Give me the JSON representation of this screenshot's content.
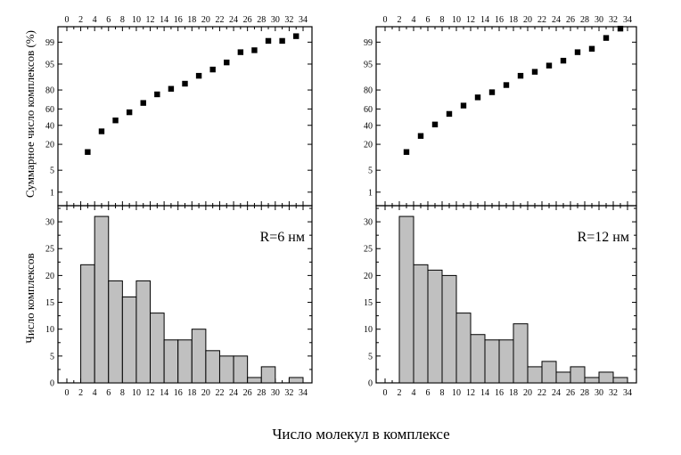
{
  "figure": {
    "x_axis_title": "Число молекул в комплексе",
    "y_axis_title_top": "Суммарное число комплексов (%)",
    "y_axis_title_bottom": "Число комплексов"
  },
  "colors": {
    "bar_fill": "#c0c0c0",
    "bar_stroke": "#000000",
    "marker": "#000000"
  },
  "chart_data": [
    {
      "id": "left-top",
      "type": "scatter",
      "title": "",
      "xlabel": "",
      "ylabel": "Суммарное число комплексов (%)",
      "xlim": [
        0,
        34
      ],
      "xticks": [
        0,
        2,
        4,
        6,
        8,
        10,
        12,
        14,
        16,
        18,
        20,
        22,
        24,
        26,
        28,
        30,
        32,
        34
      ],
      "y_scale": "probability",
      "yticks": [
        1,
        5,
        20,
        40,
        60,
        80,
        95,
        99
      ],
      "series": [
        {
          "x": [
            3,
            5,
            7,
            9,
            11,
            13,
            15,
            17,
            19,
            21,
            23,
            25,
            27,
            29,
            31,
            33
          ],
          "y": [
            14,
            33,
            46,
            56,
            67,
            76,
            81,
            85,
            90,
            93,
            95.5,
            97.8,
            98.1,
            99.1,
            99.1,
            99.4
          ]
        }
      ]
    },
    {
      "id": "left-bottom",
      "type": "bar",
      "title": "",
      "annotation": "R=6 нм",
      "xlabel": "Число молекул в комплексе",
      "ylabel": "Число комплексов",
      "xlim": [
        0,
        34
      ],
      "ylim": [
        0,
        33
      ],
      "xticks": [
        0,
        2,
        4,
        6,
        8,
        10,
        12,
        14,
        16,
        18,
        20,
        22,
        24,
        26,
        28,
        30,
        32,
        34
      ],
      "yticks": [
        0,
        5,
        10,
        15,
        20,
        25,
        30
      ],
      "categories": [
        3,
        5,
        7,
        9,
        11,
        13,
        15,
        17,
        19,
        21,
        23,
        25,
        27,
        29,
        31,
        33
      ],
      "values": [
        22,
        31,
        19,
        16,
        19,
        13,
        8,
        8,
        10,
        6,
        5,
        5,
        1,
        3,
        0,
        1
      ]
    },
    {
      "id": "right-top",
      "type": "scatter",
      "title": "",
      "xlabel": "",
      "ylabel": "",
      "xlim": [
        0,
        34
      ],
      "xticks": [
        0,
        2,
        4,
        6,
        8,
        10,
        12,
        14,
        16,
        18,
        20,
        22,
        24,
        26,
        28,
        30,
        32,
        34
      ],
      "y_scale": "probability",
      "yticks": [
        1,
        5,
        20,
        40,
        60,
        80,
        95,
        99
      ],
      "series": [
        {
          "x": [
            3,
            5,
            7,
            9,
            11,
            13,
            15,
            17,
            19,
            21,
            23,
            25,
            27,
            29,
            31,
            33
          ],
          "y": [
            14,
            28,
            41,
            54,
            64,
            73,
            78,
            84,
            90,
            92,
            94.5,
            96,
            97.8,
            98.3,
            99.3,
            99.7
          ]
        }
      ]
    },
    {
      "id": "right-bottom",
      "type": "bar",
      "title": "",
      "annotation": "R=12 нм",
      "xlabel": "Число молекул в комплексе",
      "ylabel": "",
      "xlim": [
        0,
        34
      ],
      "ylim": [
        0,
        33
      ],
      "xticks": [
        0,
        2,
        4,
        6,
        8,
        10,
        12,
        14,
        16,
        18,
        20,
        22,
        24,
        26,
        28,
        30,
        32,
        34
      ],
      "yticks": [
        0,
        5,
        10,
        15,
        20,
        25,
        30
      ],
      "categories": [
        3,
        5,
        7,
        9,
        11,
        13,
        15,
        17,
        19,
        21,
        23,
        25,
        27,
        29,
        31,
        33
      ],
      "values": [
        31,
        22,
        21,
        20,
        13,
        9,
        8,
        8,
        11,
        3,
        4,
        2,
        3,
        1,
        2,
        1
      ]
    }
  ]
}
